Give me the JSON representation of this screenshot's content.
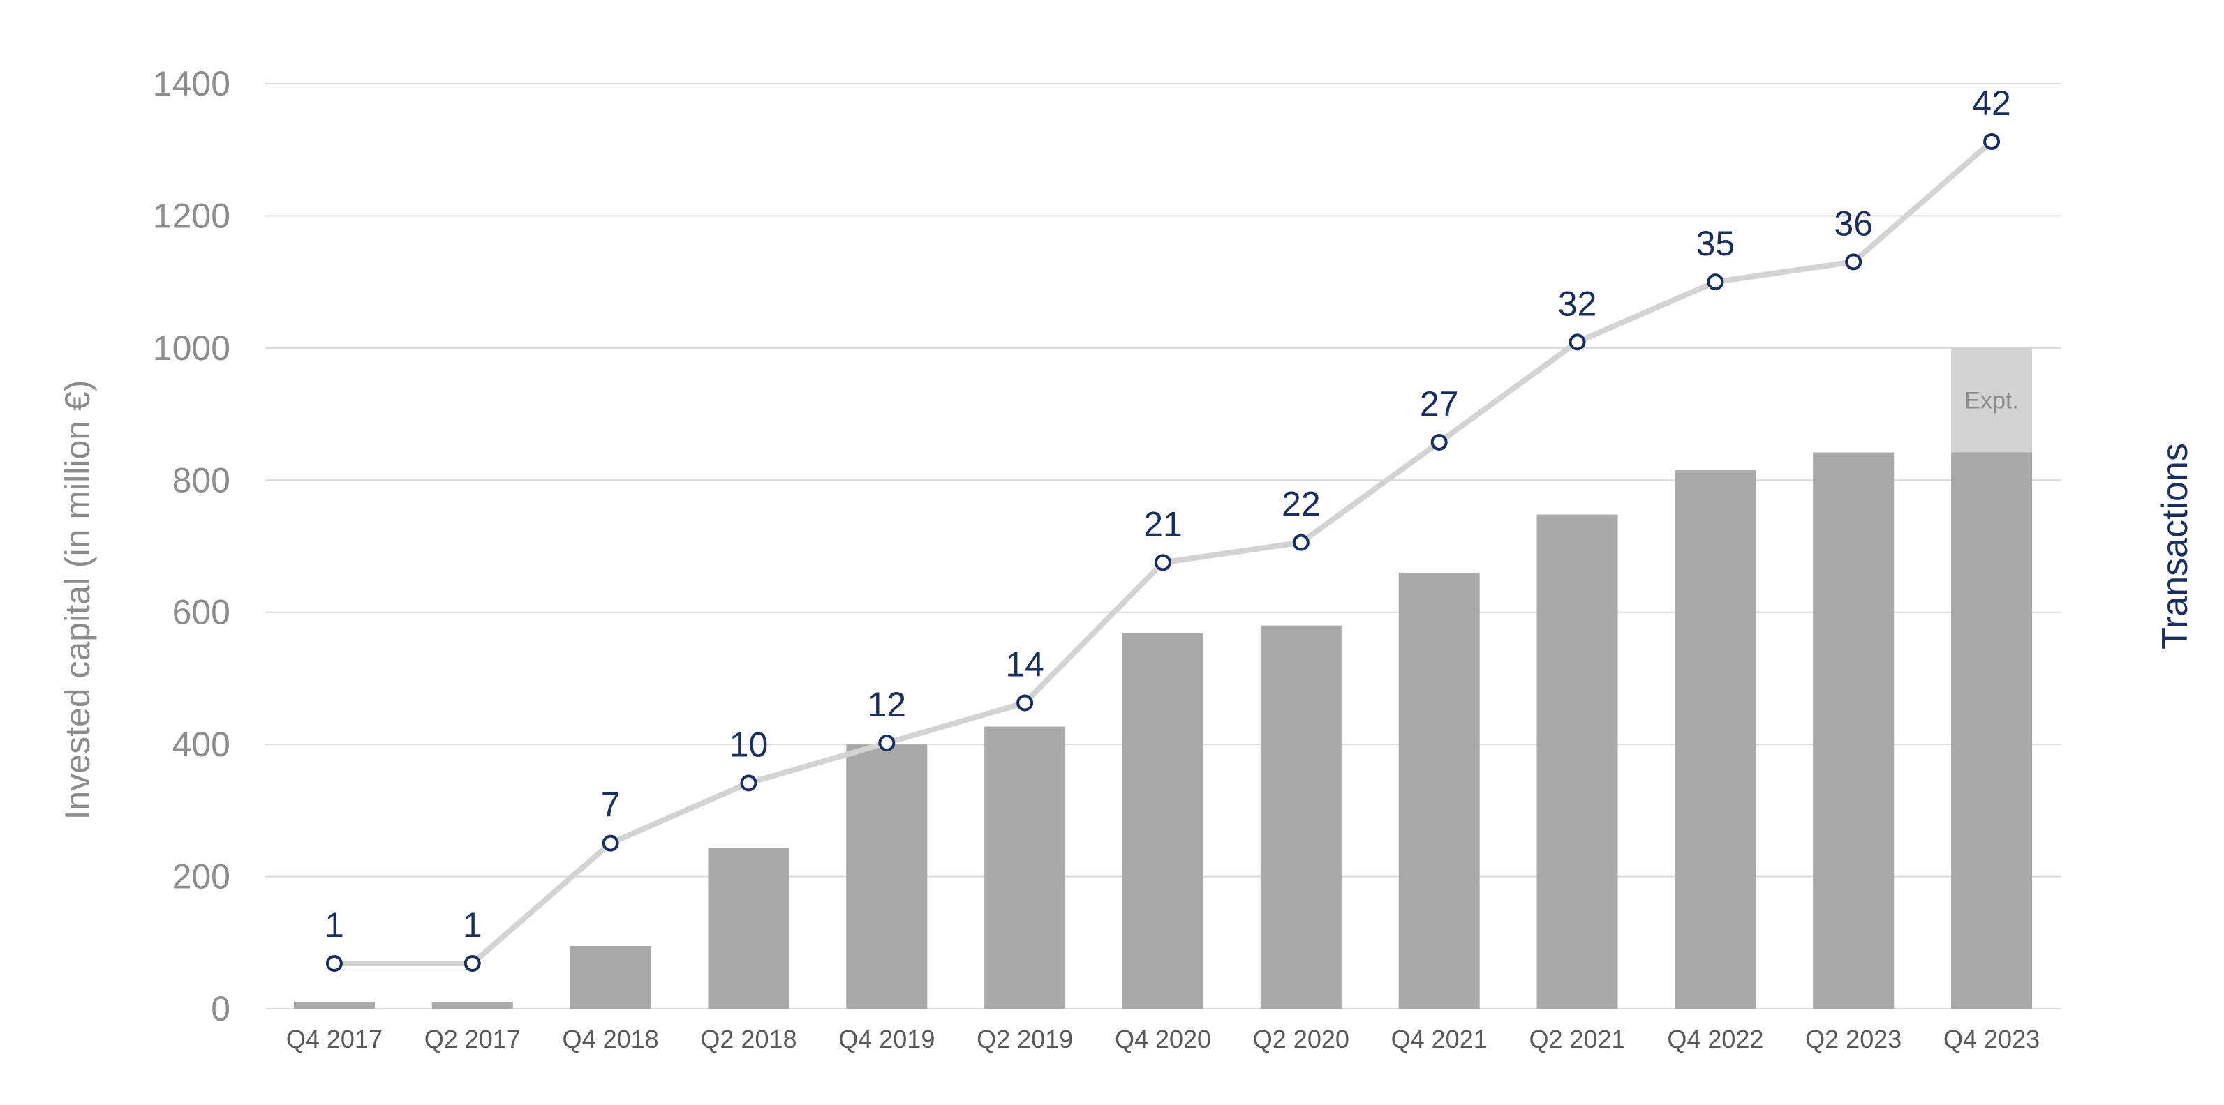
{
  "chart_data": {
    "type": "bar",
    "title": "",
    "ylabel": "Invested capital (in million €)",
    "y2label": "Transactions",
    "ylim": [
      0,
      1400
    ],
    "yticks": [
      0,
      200,
      400,
      600,
      800,
      1000,
      1200,
      1400
    ],
    "grid": true,
    "categories": [
      "Q4 2017",
      "Q2 2017",
      "Q4 2018",
      "Q2 2018",
      "Q4 2019",
      "Q2 2019",
      "Q4 2020",
      "Q2 2020",
      "Q4 2021",
      "Q2 2021",
      "Q4 2022",
      "Q2 2023",
      "Q4 2023"
    ],
    "series": [
      {
        "kind": "bar",
        "values": [
          10,
          10,
          95,
          243,
          400,
          427,
          568,
          580,
          660,
          748,
          815,
          842,
          842
        ],
        "color": "#a9a9a9"
      },
      {
        "kind": "bar-stacked-expected",
        "values": [
          0,
          0,
          0,
          0,
          0,
          0,
          0,
          0,
          0,
          0,
          0,
          0,
          158
        ],
        "color": "#d3d3d3",
        "label": "Expt."
      },
      {
        "kind": "line",
        "axis": "transactions",
        "values": [
          1,
          1,
          7,
          10,
          12,
          14,
          21,
          22,
          27,
          32,
          35,
          36,
          42
        ],
        "color": "#d3d3d3",
        "marker_color": "#1b2f5e",
        "label_color": "#1b2f5e"
      }
    ]
  },
  "colors": {
    "axis_text": "#8c8c8c",
    "category_text": "#595959",
    "grid": "#d9d9d9",
    "y2_label": "#1b2f5e"
  }
}
